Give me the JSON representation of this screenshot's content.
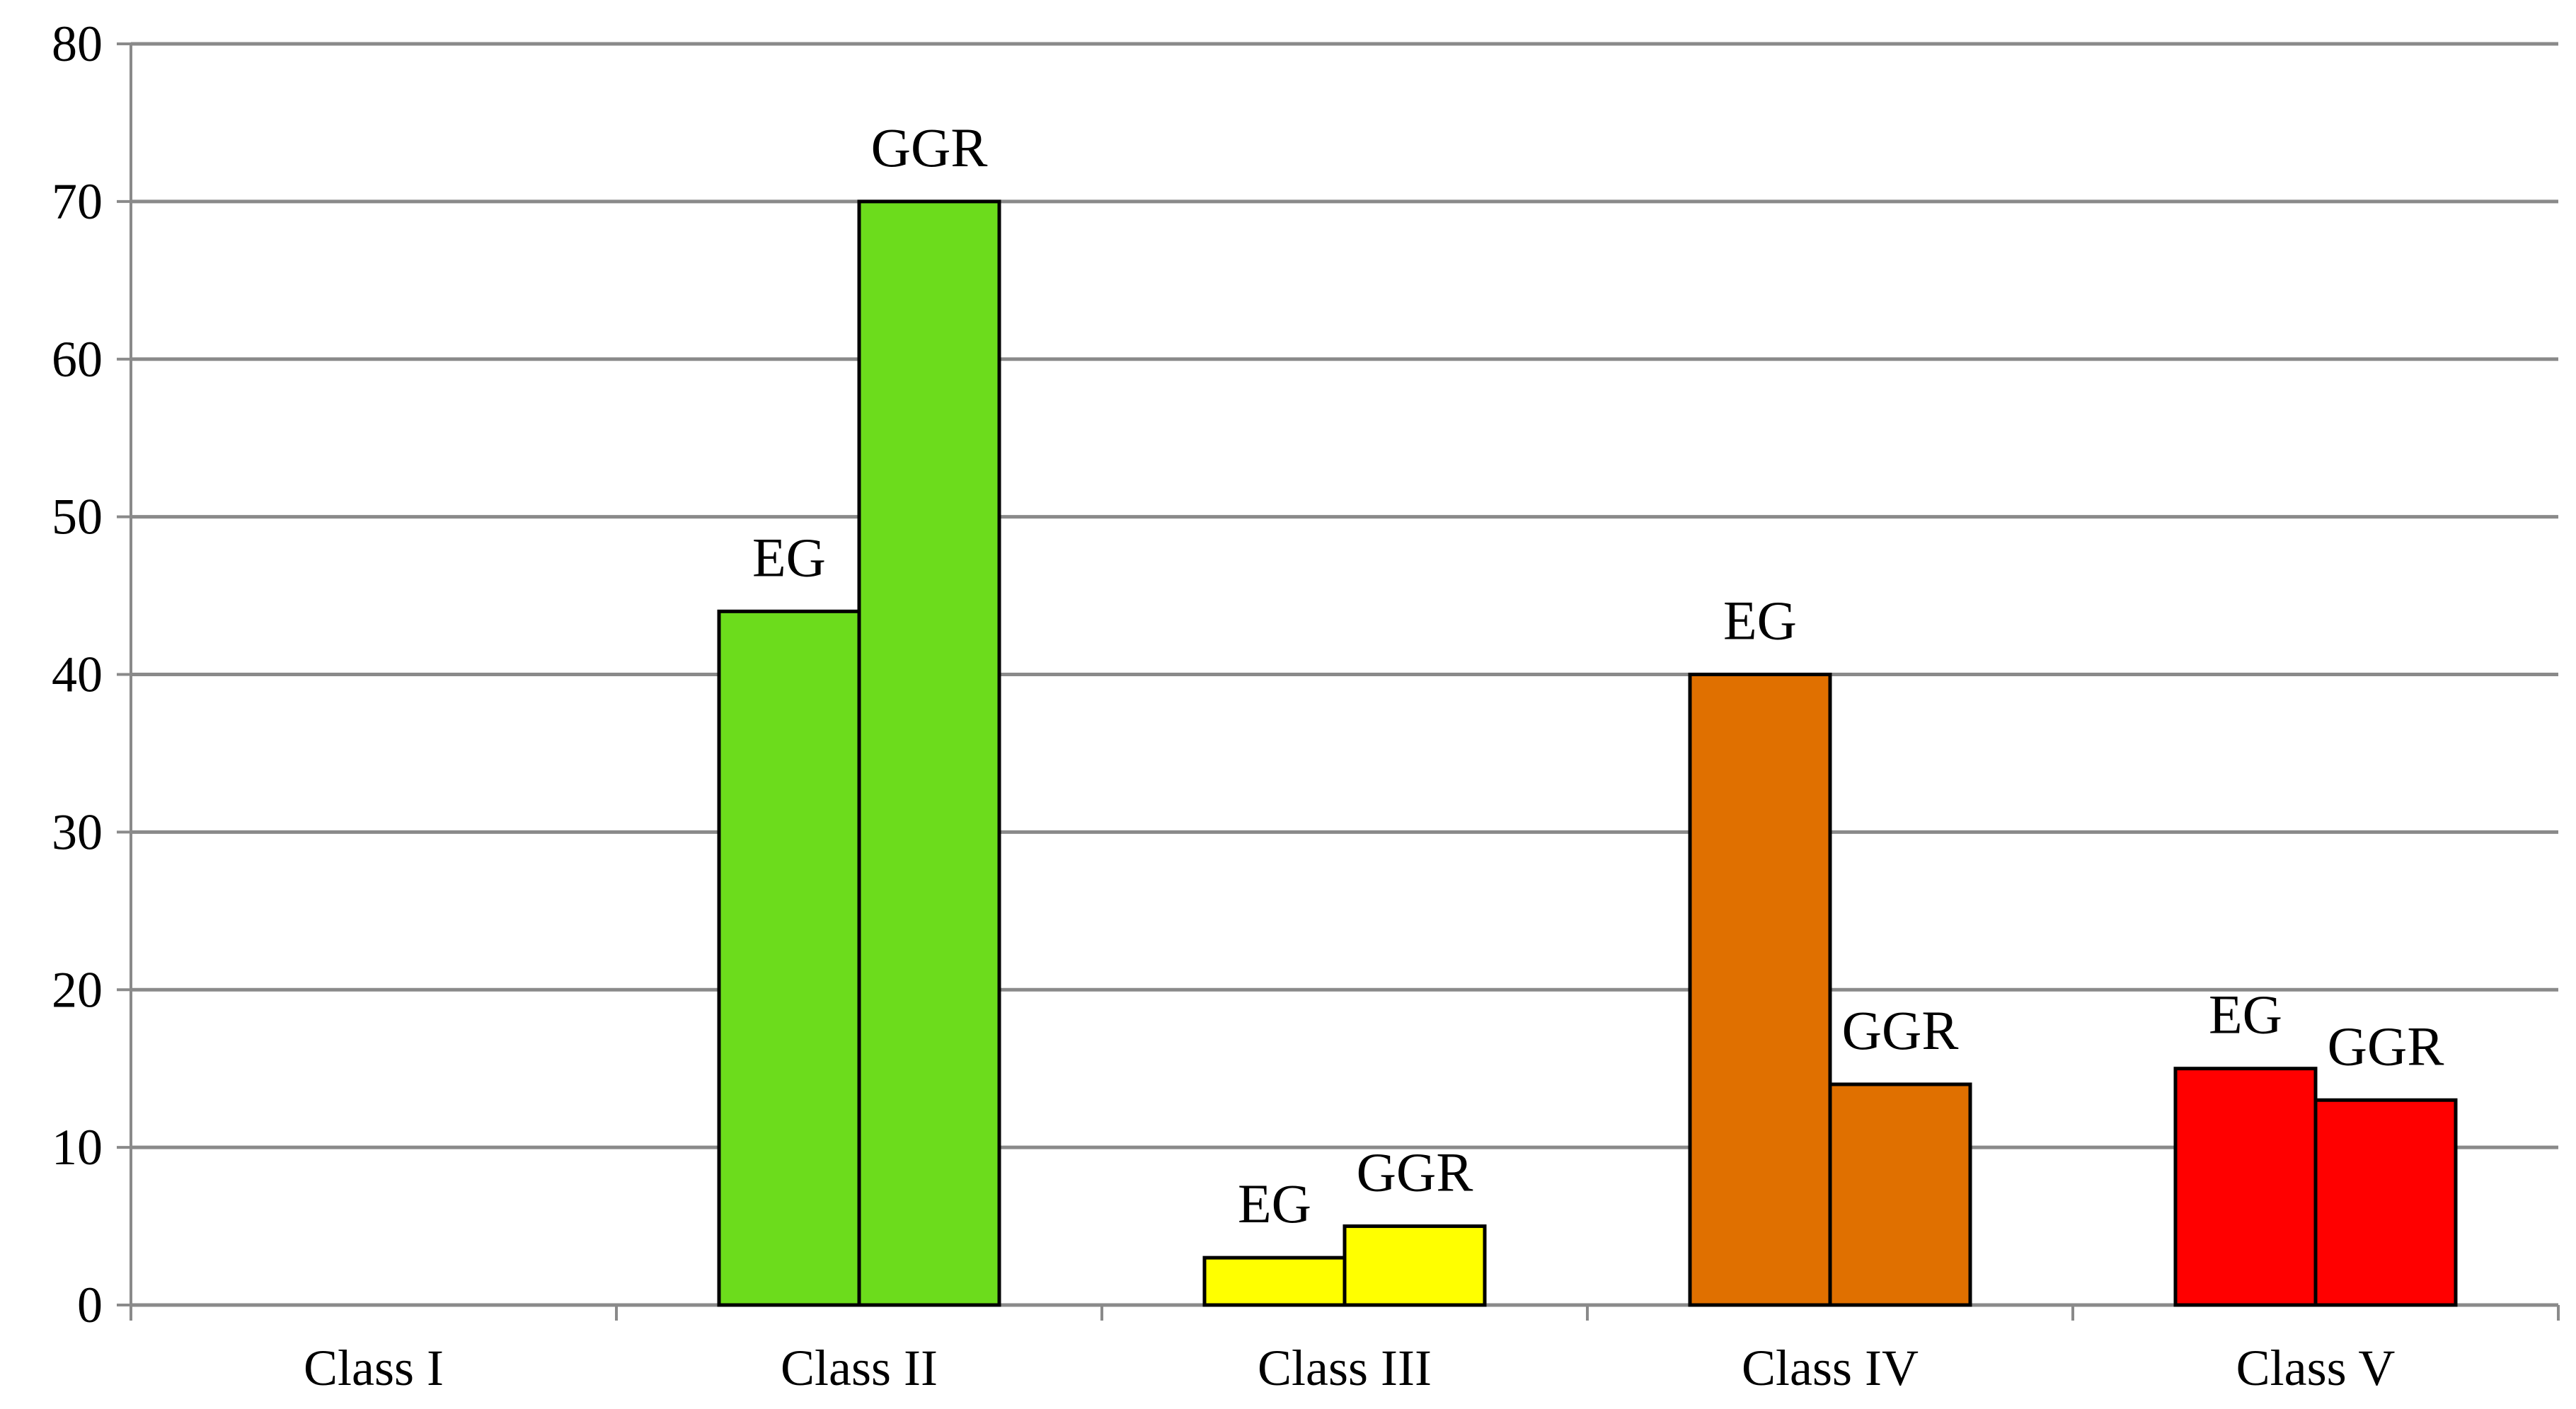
{
  "chart_data": {
    "type": "bar",
    "categories": [
      "Class I",
      "Class II",
      "Class III",
      "Class IV",
      "Class V"
    ],
    "series": [
      {
        "values": [
          0,
          44,
          3,
          40,
          15
        ]
      },
      {
        "values": [
          0,
          70,
          5,
          14,
          13
        ]
      }
    ],
    "bar_labels": [
      [
        "",
        "EG",
        "EG",
        "EG",
        "EG"
      ],
      [
        "",
        "GGR",
        "GGR",
        "GGR",
        "GGR"
      ]
    ],
    "category_colors": [
      "#6cdc1c",
      "#6cdc1c",
      "#ffff00",
      "#e07000",
      "#ff0000"
    ],
    "ylim": [
      0,
      80
    ],
    "yticks": [
      0,
      10,
      20,
      30,
      40,
      50,
      60,
      70,
      80
    ],
    "grid": true,
    "title": "",
    "xlabel": "",
    "ylabel": ""
  }
}
